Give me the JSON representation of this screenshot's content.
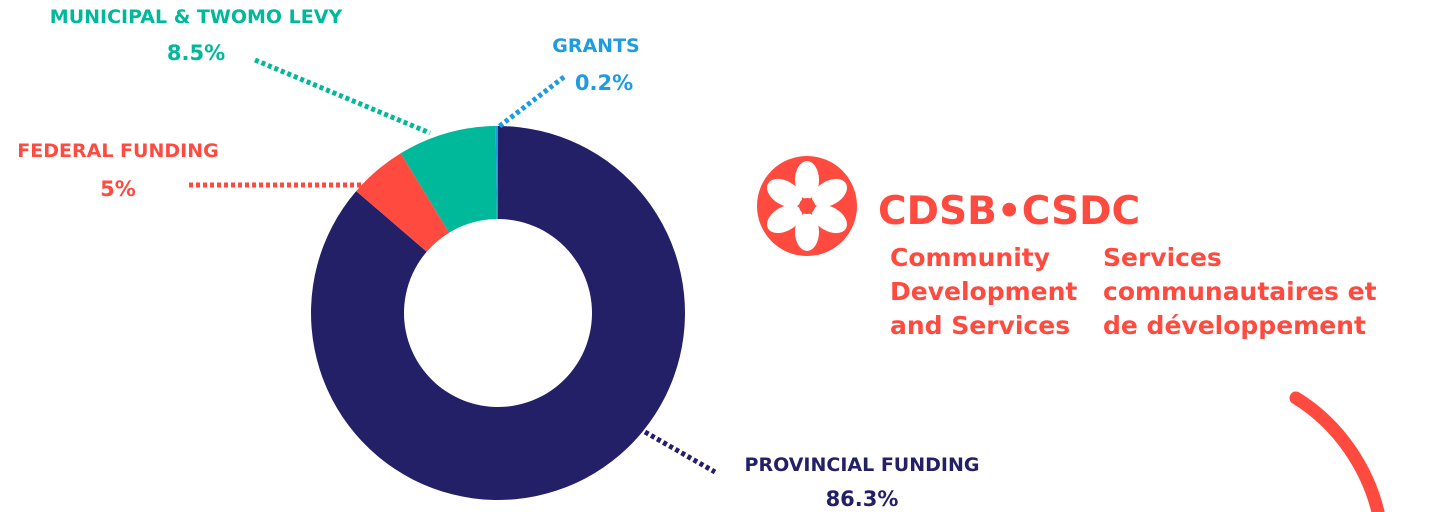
{
  "chart_data": {
    "type": "pie",
    "title": "",
    "style": "donut",
    "categories": [
      "PROVINCIAL FUNDING",
      "FEDERAL FUNDING",
      "MUNICIPAL & TWOMO LEVY",
      "GRANTS"
    ],
    "values": [
      86.3,
      5,
      8.5,
      0.2
    ],
    "value_labels": [
      "86.3%",
      "5%",
      "8.5%",
      "0.2%"
    ],
    "colors": [
      "#232068",
      "#ff4a3f",
      "#00b89a",
      "#1f9be0"
    ],
    "leader_style": "dotted"
  },
  "logo": {
    "wordmark": "CDSB•CSDC",
    "english_lines": [
      "Community",
      "Development",
      "and Services"
    ],
    "french_lines": [
      "Services",
      "communautaires et",
      "de développement"
    ],
    "color": "#ff4a3f"
  }
}
